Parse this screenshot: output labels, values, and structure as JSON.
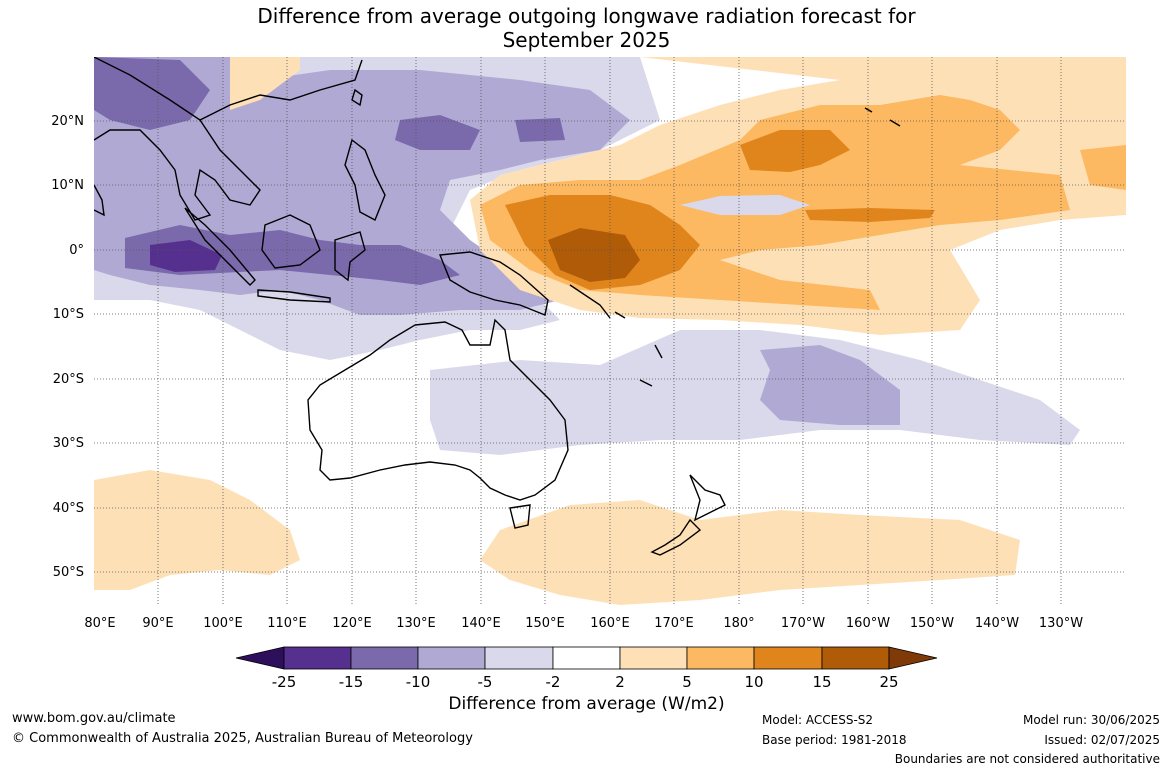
{
  "title": {
    "line1": "Difference from average outgoing longwave radiation forecast for",
    "line2": "September 2025"
  },
  "map": {
    "lon_ticks": [
      "80°E",
      "90°E",
      "100°E",
      "110°E",
      "120°E",
      "130°E",
      "140°E",
      "150°E",
      "160°E",
      "170°E",
      "180°",
      "170°W",
      "160°W",
      "150°W",
      "140°W",
      "130°W"
    ],
    "lat_ticks": [
      "20°N",
      "10°N",
      "0°",
      "10°S",
      "20°S",
      "30°S",
      "40°S",
      "50°S"
    ]
  },
  "colorbar": {
    "labels": [
      "-25",
      "-15",
      "-10",
      "-5",
      "-2",
      "2",
      "5",
      "10",
      "15",
      "25"
    ],
    "colors": [
      "#4a1e86",
      "#55308f",
      "#7a6aac",
      "#b0a9d4",
      "#d9d9eb",
      "#ffffff",
      "#fee0b7",
      "#fdb862",
      "#e0841c",
      "#b05b08",
      "#7f3a08"
    ],
    "title": "Difference from average (W/m2)"
  },
  "footer": {
    "url": "www.bom.gov.au/climate",
    "copyright": "© Commonwealth of Australia 2025, Australian Bureau of Meteorology",
    "model": "Model: ACCESS-S2",
    "base_period": "Base period: 1981-2018",
    "model_run": "Model run: 30/06/2025",
    "issued": "Issued: 02/07/2025",
    "boundaries": "Boundaries are not considered authoritative"
  }
}
